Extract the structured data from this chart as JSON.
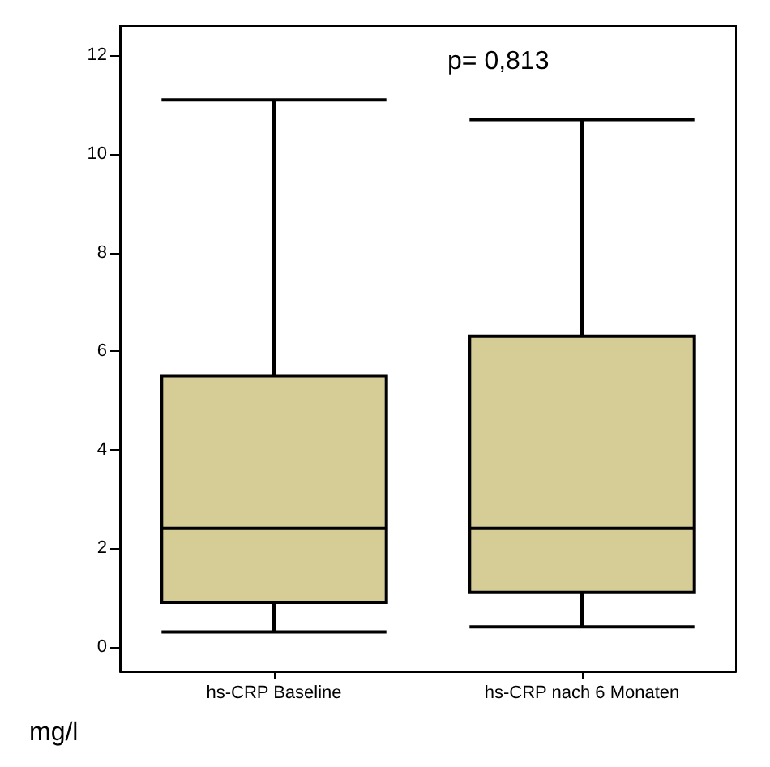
{
  "chart_data": {
    "type": "box",
    "ylabel": "mg/l",
    "annotations": [
      "p= 0,813"
    ],
    "categories": [
      "hs-CRP Baseline",
      "hs-CRP nach 6 Monaten"
    ],
    "color": "#d6cc96",
    "boxes": [
      {
        "low": 0.3,
        "q1": 0.9,
        "median": 2.4,
        "q3": 5.5,
        "high": 11.1
      },
      {
        "low": 0.4,
        "q1": 1.1,
        "median": 2.4,
        "q3": 6.3,
        "high": 10.7
      }
    ],
    "ylim": [
      -0.5,
      12.6
    ],
    "yticks": [
      0,
      2,
      4,
      6,
      8,
      10,
      12
    ],
    "grid": false
  }
}
